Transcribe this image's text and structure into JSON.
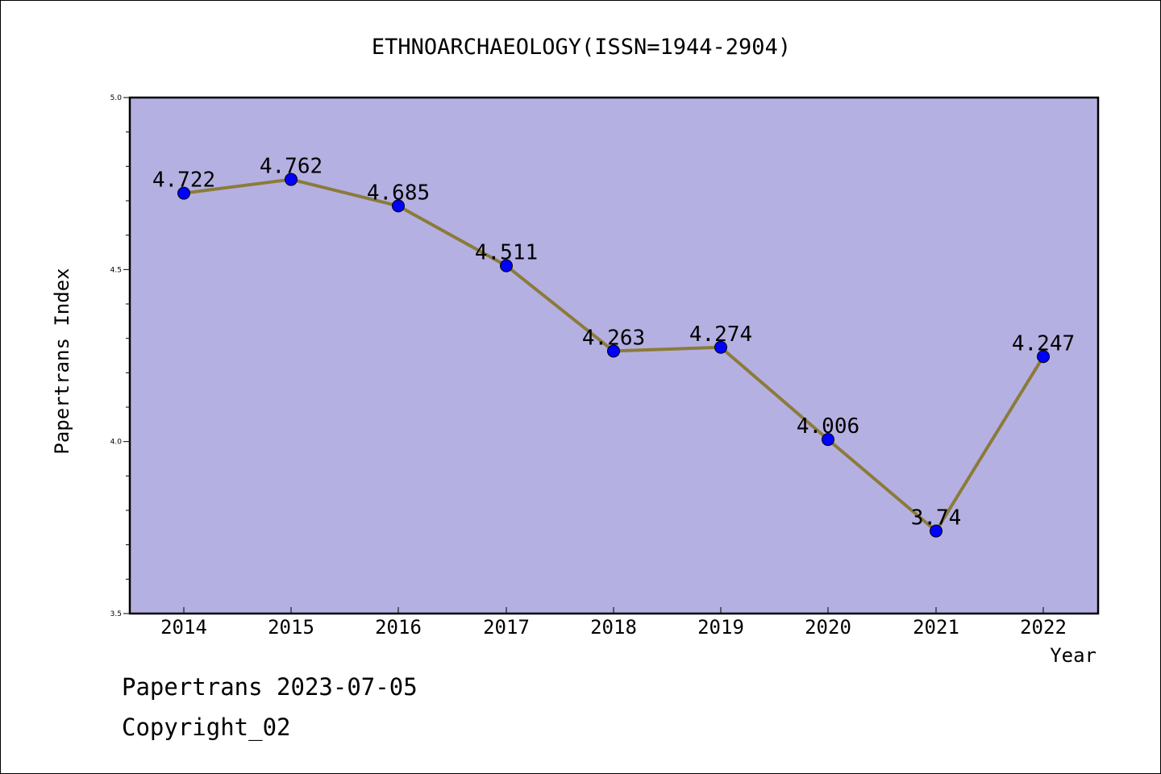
{
  "chart_data": {
    "type": "line",
    "title": "ETHNOARCHAEOLOGY(ISSN=1944-2904)",
    "xlabel": "Year",
    "ylabel": "Papertrans Index",
    "categories": [
      "2014",
      "2015",
      "2016",
      "2017",
      "2018",
      "2019",
      "2020",
      "2021",
      "2022"
    ],
    "series": [
      {
        "values": [
          4.722,
          4.762,
          4.685,
          4.511,
          4.263,
          4.274,
          4.006,
          3.74,
          4.247
        ],
        "labels": [
          "4.722",
          "4.762",
          "4.685",
          "4.511",
          "4.263",
          "4.274",
          "4.006",
          "3.74",
          "4.247"
        ]
      }
    ],
    "ylim": [
      3.5,
      5.0
    ],
    "yticks": [
      "3.5",
      "4.0",
      "4.5",
      "5.0"
    ],
    "grid": false,
    "colors": {
      "plot_background": "#b5b0e2",
      "line": "#8b7b3a",
      "marker": "#0000ff"
    }
  },
  "footer": {
    "line1": "Papertrans 2023-07-05",
    "line2": "Copyright_02"
  }
}
